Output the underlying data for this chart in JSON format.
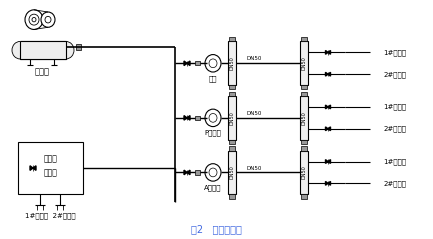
{
  "title": "图2   气动控制图",
  "title_color": "#4169E1",
  "bg_color": "#ffffff",
  "fig_width": 4.33,
  "fig_height": 2.39,
  "dpi": 100,
  "compressor_label": "空压机",
  "mixer_box_line1": "搅拌机",
  "mixer_box_line2": "卸料口",
  "bottom_label": "1#搅拌机  2#搅拌机",
  "pump_labels": [
    "水泵",
    "P乳剂泵",
    "A乳剂泵"
  ],
  "dn50_label": "DN50",
  "mixer1_label": "1#搅拌机",
  "mixer2_label": "2#搅拌机",
  "line_color": "#000000",
  "text_color": "#000000",
  "gray_color": "#666666"
}
